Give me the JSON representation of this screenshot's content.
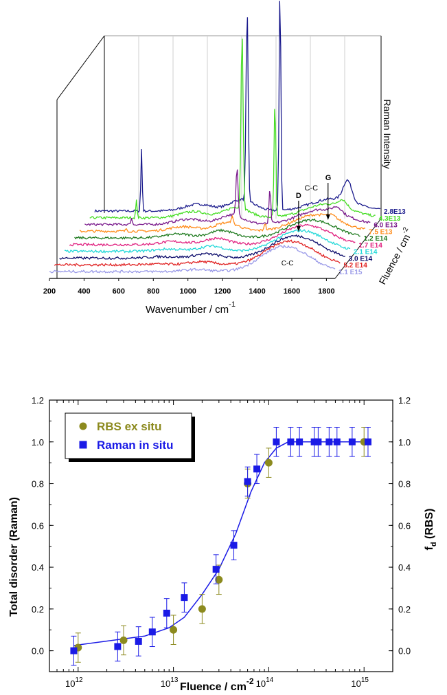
{
  "chart_data": [
    {
      "type": "line",
      "style": "3d-waterfall",
      "xlabel": "Wavenumber / cm",
      "xlabel_exp": "-1",
      "ylabel": "Raman Intensity",
      "zlabel": "Fluence / cm",
      "zlabel_exp": "-2",
      "x_ticks": [
        "200",
        "400",
        "600",
        "800",
        "1000",
        "1200",
        "1400",
        "1600",
        "1800"
      ],
      "xlim": [
        200,
        1850
      ],
      "annotations": [
        {
          "text": "D",
          "x": 1560
        },
        {
          "text": "C-C",
          "x": 1610
        },
        {
          "text": "G",
          "x": 1730
        },
        {
          "text": "C-C",
          "x": 1500
        }
      ],
      "series": [
        {
          "name": "2.8E13",
          "color": "#1a1a8c"
        },
        {
          "name": "4.3E13",
          "color": "#44dd22"
        },
        {
          "name": "6.0 E13",
          "color": "#7a1a8c"
        },
        {
          "name": "7.5 E13",
          "color": "#ff8c1a"
        },
        {
          "name": "1.2 E14",
          "color": "#1e7a1e"
        },
        {
          "name": "1.7 E14",
          "color": "#e0207f"
        },
        {
          "name": "2.1 E14",
          "color": "#22d8d8"
        },
        {
          "name": "3.0 E14",
          "color": "#0a0a6a"
        },
        {
          "name": "5.2 E14",
          "color": "#e02020"
        },
        {
          "name": "1.1 E15",
          "color": "#9a9ae8"
        }
      ]
    },
    {
      "type": "scatter",
      "xlabel": "Fluence / cm",
      "xlabel_exp": "-2",
      "ylabel": "Total disorder (Raman)",
      "y2label": "f",
      "y2label_sub": "d",
      "y2label_suffix": " (RBS)",
      "xscale": "log",
      "xlim": [
        500000000000.0,
        2000000000000000.0
      ],
      "ylim": [
        -0.1,
        1.2
      ],
      "x_ticks": [
        {
          "value": 1000000000000.0,
          "base": "10",
          "exp": "12"
        },
        {
          "value": 10000000000000.0,
          "base": "10",
          "exp": "13"
        },
        {
          "value": 100000000000000.0,
          "base": "10",
          "exp": "14"
        },
        {
          "value": 1000000000000000.0,
          "base": "10",
          "exp": "15"
        }
      ],
      "y_ticks": [
        "0.0",
        "0.2",
        "0.4",
        "0.6",
        "0.8",
        "1.0",
        "1.2"
      ],
      "legend_position": "top-left",
      "series": [
        {
          "name": "RBS ex situ",
          "marker": "circle",
          "color": "#8c8a1e",
          "points": [
            {
              "x": 1000000000000.0,
              "y": 0.015,
              "err": 0.07
            },
            {
              "x": 3000000000000.0,
              "y": 0.05,
              "err": 0.07
            },
            {
              "x": 10000000000000.0,
              "y": 0.1,
              "err": 0.07
            },
            {
              "x": 20000000000000.0,
              "y": 0.2,
              "err": 0.07
            },
            {
              "x": 30000000000000.0,
              "y": 0.34,
              "err": 0.07
            },
            {
              "x": 60000000000000.0,
              "y": 0.8,
              "err": 0.07
            },
            {
              "x": 100000000000000.0,
              "y": 0.9,
              "err": 0.07
            },
            {
              "x": 1000000000000000.0,
              "y": 1.0,
              "err": 0.07
            }
          ]
        },
        {
          "name": "Raman in situ",
          "marker": "square",
          "color": "#1a1ae6",
          "points": [
            {
              "x": 900000000000.0,
              "y": 0.0,
              "err": 0.07
            },
            {
              "x": 2600000000000.0,
              "y": 0.02,
              "err": 0.07
            },
            {
              "x": 4300000000000.0,
              "y": 0.045,
              "err": 0.07
            },
            {
              "x": 6000000000000.0,
              "y": 0.09,
              "err": 0.07
            },
            {
              "x": 8500000000000.0,
              "y": 0.18,
              "err": 0.07
            },
            {
              "x": 13000000000000.0,
              "y": 0.255,
              "err": 0.07
            },
            {
              "x": 28000000000000.0,
              "y": 0.39,
              "err": 0.07
            },
            {
              "x": 43000000000000.0,
              "y": 0.505,
              "err": 0.07
            },
            {
              "x": 60000000000000.0,
              "y": 0.81,
              "err": 0.07
            },
            {
              "x": 75000000000000.0,
              "y": 0.87,
              "err": 0.07
            },
            {
              "x": 120000000000000.0,
              "y": 1.0,
              "err": 0.07
            },
            {
              "x": 170000000000000.0,
              "y": 1.0,
              "err": 0.07
            },
            {
              "x": 210000000000000.0,
              "y": 1.0,
              "err": 0.07
            },
            {
              "x": 300000000000000.0,
              "y": 1.0,
              "err": 0.07
            },
            {
              "x": 330000000000000.0,
              "y": 1.0,
              "err": 0.07
            },
            {
              "x": 430000000000000.0,
              "y": 1.0,
              "err": 0.07
            },
            {
              "x": 520000000000000.0,
              "y": 1.0,
              "err": 0.07
            },
            {
              "x": 750000000000000.0,
              "y": 1.0,
              "err": 0.07
            },
            {
              "x": 1100000000000000.0,
              "y": 1.0,
              "err": 0.07
            }
          ]
        }
      ],
      "fit_line": {
        "color": "#1a1ae6",
        "points": [
          {
            "x": 900000000000.0,
            "y": 0.025
          },
          {
            "x": 5000000000000.0,
            "y": 0.07
          },
          {
            "x": 9000000000000.0,
            "y": 0.11
          },
          {
            "x": 13000000000000.0,
            "y": 0.16
          },
          {
            "x": 20000000000000.0,
            "y": 0.27
          },
          {
            "x": 30000000000000.0,
            "y": 0.39
          },
          {
            "x": 45000000000000.0,
            "y": 0.56
          },
          {
            "x": 65000000000000.0,
            "y": 0.76
          },
          {
            "x": 90000000000000.0,
            "y": 0.9
          },
          {
            "x": 120000000000000.0,
            "y": 0.97
          },
          {
            "x": 160000000000000.0,
            "y": 1.0
          },
          {
            "x": 1100000000000000.0,
            "y": 1.0
          }
        ]
      }
    }
  ]
}
